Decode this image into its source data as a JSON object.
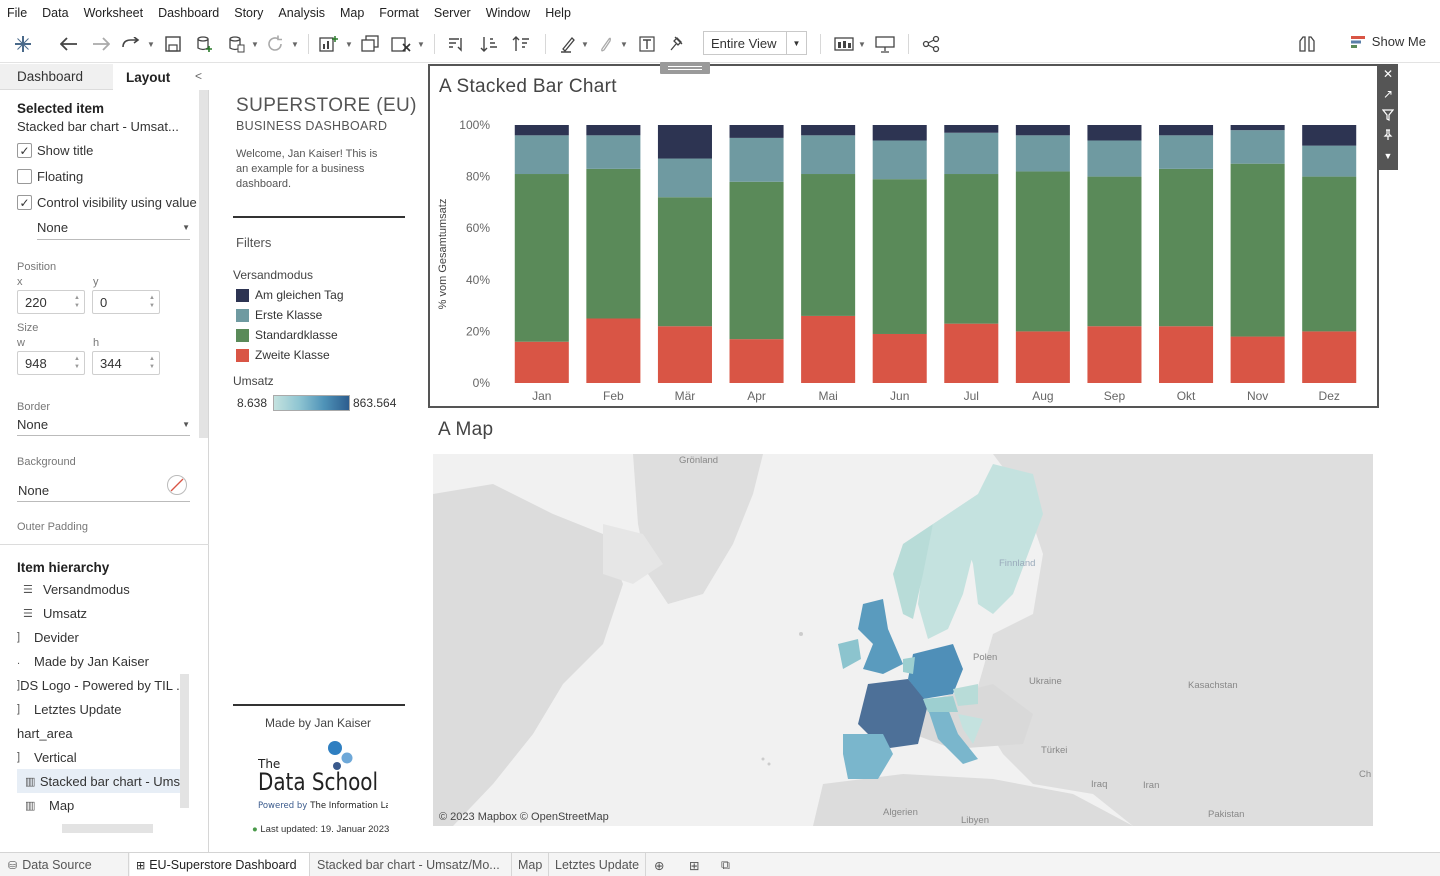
{
  "menu": [
    "File",
    "Data",
    "Worksheet",
    "Dashboard",
    "Story",
    "Analysis",
    "Map",
    "Format",
    "Server",
    "Window",
    "Help"
  ],
  "toolbar": {
    "fit_label": "Entire View",
    "show_me_label": "Show Me"
  },
  "left_pane": {
    "tabs": [
      "Dashboard",
      "Layout"
    ],
    "selected_item_heading": "Selected item",
    "selected_item_name": "Stacked bar chart - Umsat...",
    "show_title_label": "Show title",
    "floating_label": "Floating",
    "control_visibility_label": "Control visibility using value",
    "visibility_value": "None",
    "position_label": "Position",
    "x_label": "x",
    "x_value": "220",
    "y_label": "y",
    "y_value": "0",
    "size_label": "Size",
    "w_label": "w",
    "w_value": "948",
    "h_label": "h",
    "h_value": "344",
    "border_label": "Border",
    "border_value": "None",
    "background_label": "Background",
    "background_value": "None",
    "outer_padding_label": "Outer Padding",
    "hierarchy_heading": "Item hierarchy",
    "hierarchy": [
      {
        "label": "Versandmodus",
        "icon": "legend-icon"
      },
      {
        "label": "Umsatz",
        "icon": "legend-icon"
      },
      {
        "label": "Devider",
        "icon": "bracket-icon"
      },
      {
        "label": "Made by Jan Kaiser",
        "icon": "text-icon"
      },
      {
        "label": "DS Logo - Powered by TIL ...",
        "icon": "bracket-icon"
      },
      {
        "label": "Letztes Update",
        "icon": "bracket-icon"
      },
      {
        "label": "hart_area",
        "icon": "none"
      },
      {
        "label": "Vertical",
        "icon": "bracket-icon"
      },
      {
        "label": "Stacked bar chart - Ums",
        "icon": "bar-chart-icon"
      },
      {
        "label": "Map",
        "icon": "bar-chart-icon"
      }
    ]
  },
  "dashboard": {
    "title": "SUPERSTORE (EU)",
    "subtitle": "BUSINESS DASHBOARD",
    "welcome": "Welcome, Jan Kaiser! This is an example for a business dashboard.",
    "filters_title": "Filters",
    "legend_title": "Versandmodus",
    "legend": [
      {
        "label": "Am gleichen Tag",
        "color": "#2d3452"
      },
      {
        "label": "Erste Klasse",
        "color": "#6f9aa1"
      },
      {
        "label": "Standardklasse",
        "color": "#5a8a59"
      },
      {
        "label": "Zweite Klasse",
        "color": "#d95545"
      }
    ],
    "umsatz_title": "Umsatz",
    "umsatz_min": "8.638",
    "umsatz_max": "863.564",
    "made_by": "Made by Jan Kaiser",
    "logo_the": "The",
    "logo_main": "Data School",
    "logo_powered_prefix": "Powered by",
    "logo_powered_name": "The Information Lab",
    "last_updated": "Last updated: 19. Januar 2023",
    "chart_title": "A Stacked Bar Chart",
    "map_title": "A Map",
    "map_credit": "© 2023 Mapbox © OpenStreetMap",
    "map_labels": [
      "Grönland",
      "Polen",
      "Ukraine",
      "Kasachstan",
      "Türkei",
      "Iraq",
      "Iran",
      "Algerien",
      "Libyen",
      "Pakistan",
      "Ch",
      "Finnland"
    ]
  },
  "chart_data": {
    "type": "bar",
    "stacked": true,
    "title": "A Stacked Bar Chart",
    "xlabel": "",
    "ylabel": "% vom Gesamtumsatz",
    "ylim": [
      0,
      100
    ],
    "yticks": [
      "0%",
      "20%",
      "40%",
      "60%",
      "80%",
      "100%"
    ],
    "categories": [
      "Jan",
      "Feb",
      "Mär",
      "Apr",
      "Mai",
      "Jun",
      "Jul",
      "Aug",
      "Sep",
      "Okt",
      "Nov",
      "Dez"
    ],
    "series": [
      {
        "name": "Zweite Klasse",
        "color": "#d95545",
        "values": [
          16,
          25,
          22,
          17,
          26,
          19,
          23,
          20,
          22,
          22,
          18,
          20
        ]
      },
      {
        "name": "Standardklasse",
        "color": "#5a8a59",
        "values": [
          65,
          58,
          50,
          61,
          55,
          60,
          58,
          62,
          58,
          61,
          67,
          60
        ]
      },
      {
        "name": "Erste Klasse",
        "color": "#6f9aa1",
        "values": [
          15,
          13,
          15,
          17,
          15,
          15,
          16,
          14,
          14,
          13,
          13,
          12
        ]
      },
      {
        "name": "Am gleichen Tag",
        "color": "#2d3452",
        "values": [
          4,
          4,
          13,
          5,
          4,
          6,
          3,
          4,
          6,
          4,
          2,
          8
        ]
      }
    ]
  },
  "sheet_tabs": [
    "Data Source",
    "EU-Superstore Dashboard",
    "Stacked bar chart - Umsatz/Mo...",
    "Map",
    "Letztes Update"
  ]
}
